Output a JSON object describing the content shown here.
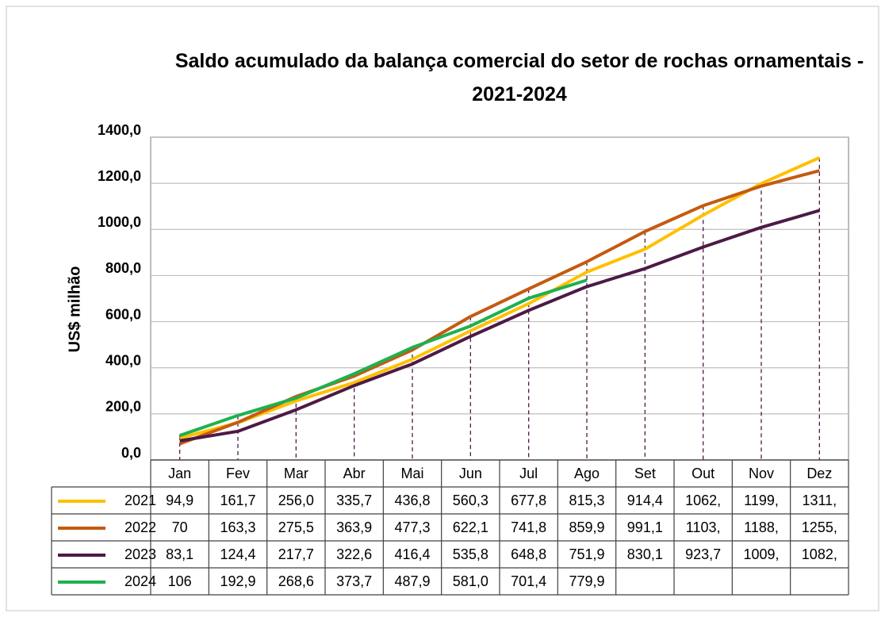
{
  "chart_data": {
    "type": "line",
    "title": "Saldo acumulado da balança comercial do setor de rochas ornamentais - 2021-2024",
    "y_label": "US$ milhão",
    "categories": [
      "Jan",
      "Fev",
      "Mar",
      "Abr",
      "Mai",
      "Jun",
      "Jul",
      "Ago",
      "Set",
      "Out",
      "Nov",
      "Dez"
    ],
    "series": [
      {
        "name": "2021",
        "color": "#ffc000",
        "values": [
          94.9,
          161.7,
          256.0,
          335.7,
          436.8,
          560.3,
          677.8,
          815.3,
          914.4,
          1062,
          1199,
          1311
        ],
        "value_labels": [
          "94,9",
          "161,7",
          "256,0",
          "335,7",
          "436,8",
          "560,3",
          "677,8",
          "815,3",
          "914,4",
          "1062,",
          "1199,",
          "1311,"
        ]
      },
      {
        "name": "2022",
        "color": "#c55a11",
        "values": [
          70,
          163.3,
          275.5,
          363.9,
          477.3,
          622.1,
          741.8,
          859.9,
          991.1,
          1103,
          1188,
          1255
        ],
        "value_labels": [
          "70",
          "163,3",
          "275,5",
          "363,9",
          "477,3",
          "622,1",
          "741,8",
          "859,9",
          "991,1",
          "1103,",
          "1188,",
          "1255,"
        ]
      },
      {
        "name": "2023",
        "color": "#4d1a45",
        "values": [
          83.1,
          124.4,
          217.7,
          322.6,
          416.4,
          535.8,
          648.8,
          751.9,
          830.1,
          923.7,
          1009,
          1082
        ],
        "value_labels": [
          "83,1",
          "124,4",
          "217,7",
          "322,6",
          "416,4",
          "535,8",
          "648,8",
          "751,9",
          "830,1",
          "923,7",
          "1009,",
          "1082,"
        ]
      },
      {
        "name": "2024",
        "color": "#1fb04f",
        "values": [
          106,
          192.9,
          268.6,
          373.7,
          487.9,
          581.0,
          701.4,
          779.9,
          null,
          null,
          null,
          null
        ],
        "value_labels": [
          "106",
          "192,9",
          "268,6",
          "373,7",
          "487,9",
          "581,0",
          "701,4",
          "779,9",
          null,
          null,
          null,
          null
        ]
      }
    ],
    "ylim": [
      0,
      1400
    ],
    "yticks": [
      {
        "value": 0,
        "label": "0,0"
      },
      {
        "value": 200,
        "label": "200,0"
      },
      {
        "value": 400,
        "label": "400,0"
      },
      {
        "value": 600,
        "label": "600,0"
      },
      {
        "value": 800,
        "label": "800,0"
      },
      {
        "value": 1000,
        "label": "1000,0"
      },
      {
        "value": 1200,
        "label": "1200,0"
      },
      {
        "value": 1400,
        "label": "1400,0"
      }
    ],
    "grid": true
  }
}
